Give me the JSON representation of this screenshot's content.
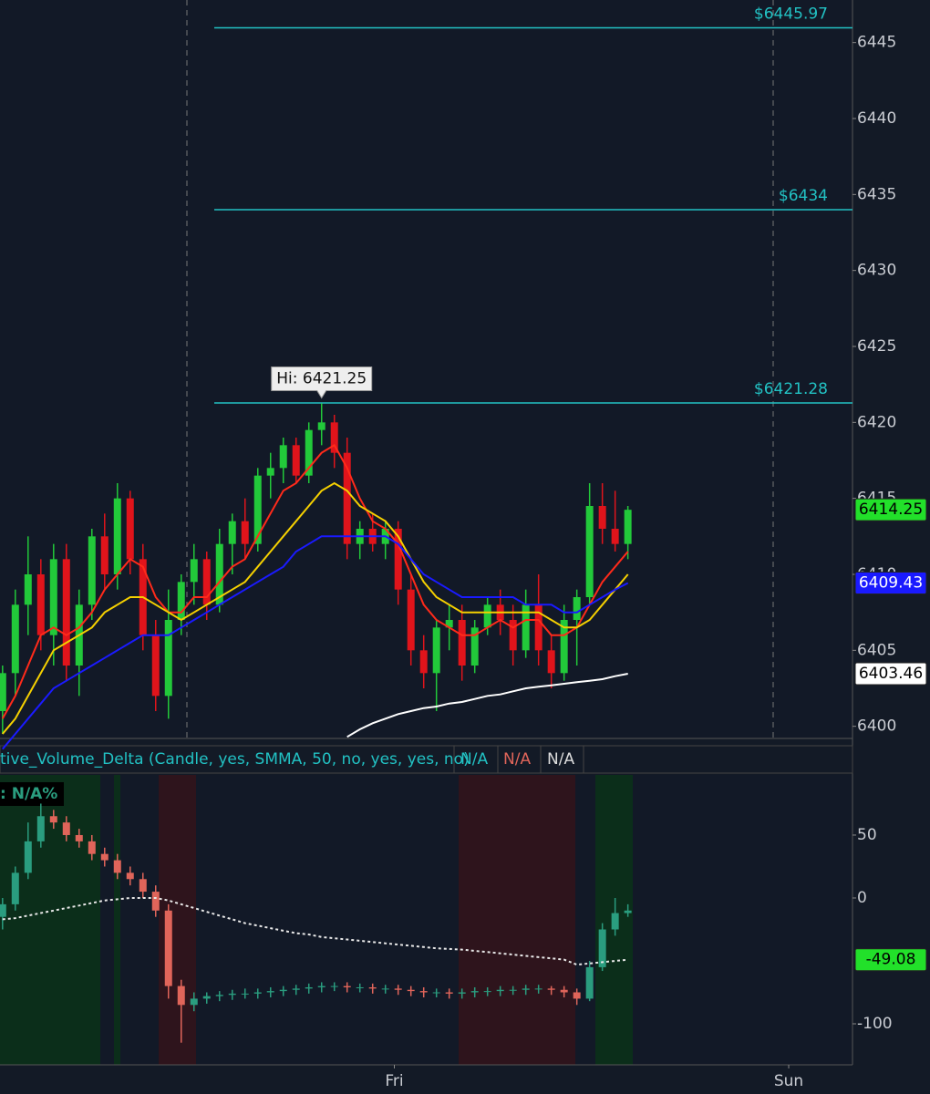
{
  "chart_data": [
    {
      "type": "candlestick",
      "open": [
        6401,
        6403.5,
        6408,
        6410,
        6406,
        6411,
        6404,
        6408,
        6412.5,
        6410,
        6415,
        6411,
        6406,
        6402,
        6407,
        6409.5,
        6411,
        6408,
        6412,
        6413.5,
        6412,
        6416.5,
        6417,
        6418.5,
        6416.5,
        6419.5,
        6420,
        6418,
        6412,
        6413,
        6412,
        6413,
        6409,
        6405,
        6403.5,
        6406.5,
        6407,
        6404,
        6406.5,
        6408,
        6407,
        6405,
        6408,
        6405,
        6403.5,
        6407,
        6408.5,
        6414.5,
        6413,
        6412
      ],
      "high": [
        6404,
        6409,
        6412.5,
        6411,
        6412,
        6412,
        6409,
        6413,
        6414,
        6416,
        6415.5,
        6412,
        6407,
        6409,
        6410,
        6412,
        6411.5,
        6413,
        6414,
        6415,
        6417,
        6418,
        6419,
        6419,
        6420,
        6421.25,
        6420.5,
        6419,
        6413.5,
        6414,
        6413.5,
        6413.5,
        6410,
        6406,
        6407,
        6408,
        6408,
        6407,
        6408.5,
        6409,
        6408,
        6409,
        6410,
        6406,
        6408,
        6409,
        6416,
        6416,
        6415.5,
        6414.5
      ],
      "low": [
        6399.5,
        6402,
        6406,
        6405,
        6404,
        6403,
        6402,
        6407,
        6409,
        6409,
        6410,
        6405,
        6401,
        6400.5,
        6406,
        6408,
        6407,
        6407.5,
        6410,
        6411,
        6411.5,
        6415,
        6416,
        6416,
        6416,
        6418.5,
        6417,
        6411,
        6411,
        6411.5,
        6411,
        6408,
        6404,
        6402.5,
        6401,
        6405,
        6403,
        6403.5,
        6406,
        6406,
        6404,
        6404.5,
        6404,
        6402.5,
        6403,
        6404,
        6408,
        6412,
        6411.5,
        6411
      ],
      "close": [
        6403.5,
        6408,
        6410,
        6406,
        6411,
        6404,
        6408,
        6412.5,
        6410,
        6415,
        6411,
        6406,
        6402,
        6407,
        6409.5,
        6411,
        6408,
        6412,
        6413.5,
        6412,
        6416.5,
        6417,
        6418.5,
        6416.5,
        6419.5,
        6420,
        6418,
        6412,
        6413,
        6412,
        6413,
        6409,
        6405,
        6403.5,
        6406.5,
        6407,
        6404,
        6406.5,
        6408,
        6407,
        6405,
        6408,
        6405,
        6403.5,
        6407,
        6408.5,
        6414.5,
        6413,
        6412,
        6414.25
      ],
      "up_color": "#22c93a",
      "down_color": "#e0141b",
      "series": [
        {
          "color": "#ff2a1a",
          "values": [
            6400.5,
            6402,
            6404,
            6406,
            6406.5,
            6406,
            6406.5,
            6407.5,
            6409,
            6410,
            6411,
            6410.5,
            6408.5,
            6407.5,
            6407.5,
            6408.5,
            6408.5,
            6409.5,
            6410.5,
            6411,
            6412.5,
            6414,
            6415.5,
            6416,
            6417,
            6418,
            6418.5,
            6417,
            6415,
            6413.5,
            6413,
            6412,
            6410,
            6408,
            6407,
            6406.5,
            6406,
            6406,
            6406.5,
            6407,
            6406.5,
            6407,
            6407,
            6406,
            6406,
            6406.5,
            6408,
            6409.5,
            6410.5,
            6411.5
          ]
        },
        {
          "color": "#f5d000",
          "values": [
            6399.5,
            6400.5,
            6402,
            6403.5,
            6405,
            6405.5,
            6406,
            6406.5,
            6407.5,
            6408,
            6408.5,
            6408.5,
            6408,
            6407.5,
            6407,
            6407.5,
            6408,
            6408.5,
            6409,
            6409.5,
            6410.5,
            6411.5,
            6412.5,
            6413.5,
            6414.5,
            6415.5,
            6416,
            6415.5,
            6414.5,
            6414,
            6413.5,
            6412.5,
            6411,
            6409.5,
            6408.5,
            6408,
            6407.5,
            6407.5,
            6407.5,
            6407.5,
            6407.5,
            6407.5,
            6407.5,
            6407,
            6406.5,
            6406.5,
            6407,
            6408,
            6409,
            6410
          ]
        },
        {
          "color": "#1a1aff",
          "values": [
            6398.5,
            6399.5,
            6400.5,
            6401.5,
            6402.5,
            6403,
            6403.5,
            6404,
            6404.5,
            6405,
            6405.5,
            6406,
            6406,
            6406,
            6406.5,
            6407,
            6407.5,
            6408,
            6408.5,
            6409,
            6409.5,
            6410,
            6410.5,
            6411.5,
            6412,
            6412.5,
            6412.5,
            6412.5,
            6412.5,
            6412.5,
            6412.5,
            6412,
            6411,
            6410,
            6409.5,
            6409,
            6408.5,
            6408.5,
            6408.5,
            6408.5,
            6408.5,
            6408,
            6408,
            6408,
            6407.5,
            6407.5,
            6408,
            6408.5,
            6409,
            6409.43
          ]
        },
        {
          "color": "#ffffff",
          "values": [
            null,
            null,
            null,
            null,
            null,
            null,
            null,
            null,
            null,
            null,
            null,
            null,
            null,
            null,
            null,
            null,
            null,
            null,
            null,
            null,
            null,
            null,
            null,
            null,
            null,
            null,
            null,
            6399.3,
            6399.8,
            6400.2,
            6400.5,
            6400.8,
            6401,
            6401.2,
            6401.3,
            6401.5,
            6401.6,
            6401.8,
            6402,
            6402.1,
            6402.3,
            6402.5,
            6402.6,
            6402.7,
            6402.8,
            6402.9,
            6403,
            6403.1,
            6403.3,
            6403.46
          ]
        }
      ],
      "levels": [
        {
          "value": 6445.97,
          "label": "$6445.97"
        },
        {
          "value": 6434,
          "label": "$6434"
        },
        {
          "value": 6421.28,
          "label": "$6421.28"
        }
      ],
      "level_color": "#22c1c3",
      "annotation": "Hi: 6421.25",
      "xlim": [
        -0.2,
        66.6
      ],
      "ylim": [
        6399.2,
        6447.8
      ],
      "yticks": [
        6400,
        6405,
        6410,
        6415,
        6420,
        6425,
        6430,
        6435,
        6440,
        6445
      ]
    },
    {
      "type": "candlestick",
      "header": "tive_Volume_Delta (Candle, yes, SMMA, 50, no, yes, yes, no)",
      "header_values": [
        "N/A",
        "N/A",
        "N/A"
      ],
      "label": ": N/A%",
      "open": [
        -15,
        -5,
        20,
        45,
        65,
        60,
        50,
        45,
        35,
        30,
        20,
        15,
        5,
        -10,
        -70,
        -85,
        -80,
        -78,
        -77,
        -76,
        -76,
        -75,
        -74,
        -73,
        -72,
        -71,
        -70,
        -70,
        -71,
        -71,
        -72,
        -72,
        -73,
        -74,
        -75,
        -75,
        -76,
        -75,
        -74,
        -74,
        -73,
        -73,
        -72,
        -72,
        -73,
        -75,
        -80,
        -55,
        -25,
        -12
      ],
      "high": [
        0,
        25,
        60,
        75,
        70,
        65,
        55,
        50,
        40,
        35,
        25,
        20,
        10,
        -5,
        -65,
        -75,
        -75,
        -74,
        -73,
        -72,
        -72,
        -71,
        -70,
        -69,
        -68,
        -67,
        -67,
        -67,
        -68,
        -68,
        -69,
        -69,
        -70,
        -71,
        -72,
        -72,
        -72,
        -71,
        -71,
        -70,
        -70,
        -69,
        -69,
        -70,
        -70,
        -72,
        -50,
        -20,
        0,
        -5
      ],
      "low": [
        -25,
        -10,
        15,
        40,
        55,
        45,
        40,
        30,
        25,
        15,
        10,
        0,
        -15,
        -80,
        -115,
        -90,
        -84,
        -82,
        -81,
        -80,
        -80,
        -79,
        -78,
        -77,
        -76,
        -75,
        -74,
        -75,
        -75,
        -76,
        -76,
        -77,
        -78,
        -79,
        -79,
        -80,
        -80,
        -79,
        -78,
        -78,
        -77,
        -77,
        -76,
        -77,
        -79,
        -85,
        -82,
        -58,
        -30,
        -15
      ],
      "close": [
        -5,
        20,
        45,
        65,
        60,
        50,
        45,
        35,
        30,
        20,
        15,
        5,
        -10,
        -70,
        -85,
        -80,
        -78,
        -77,
        -76,
        -76,
        -75,
        -74,
        -73,
        -72,
        -71,
        -70,
        -70,
        -71,
        -71,
        -72,
        -72,
        -73,
        -74,
        -75,
        -75,
        -76,
        -75,
        -74,
        -74,
        -73,
        -73,
        -72,
        -72,
        -73,
        -75,
        -80,
        -55,
        -25,
        -12,
        -10
      ],
      "up_color": "#2a9d7f",
      "down_color": "#e0655a",
      "series": [
        {
          "color": "#e8e8e8",
          "dashed": true,
          "values": [
            -17,
            -16,
            -14,
            -12,
            -10,
            -8,
            -6,
            -4,
            -2,
            -1,
            0,
            0,
            0,
            -2,
            -5,
            -8,
            -11,
            -14,
            -17,
            -20,
            -22,
            -24,
            -26,
            -28,
            -29,
            -31,
            -32,
            -33,
            -34,
            -35,
            -36,
            -37,
            -38,
            -39,
            -40,
            -40.5,
            -41,
            -42,
            -43,
            -44,
            -45,
            -46,
            -47,
            -48,
            -49,
            -53,
            -52,
            -51,
            -50,
            -49.08
          ]
        }
      ],
      "xlim": [
        -0.2,
        66.6
      ],
      "xticks": [
        {
          "value": 30.7,
          "label": "Fri"
        },
        {
          "value": 61.6,
          "label": "Sun"
        }
      ],
      "ylim": [
        -132.6,
        97.8
      ],
      "yticks": [
        50,
        0,
        -100
      ]
    }
  ]
}
